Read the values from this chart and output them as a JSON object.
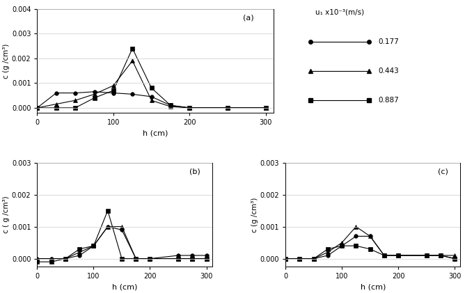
{
  "legend_title": "u₁ x10⁻³(m/s)",
  "legend_values": [
    "0.177",
    "0.443",
    "0.887"
  ],
  "markers": [
    "o",
    "^",
    "s"
  ],
  "subplot_a": {
    "label": "(a)",
    "xlabel": "h (cm)",
    "ylabel": "c (g /cm³)",
    "xlim": [
      0,
      310
    ],
    "ylim": [
      -0.0002,
      0.004
    ],
    "yticks": [
      0.0,
      0.001,
      0.002,
      0.003,
      0.004
    ],
    "xticks": [
      0,
      100,
      200,
      300
    ],
    "series": [
      {
        "x": [
          0,
          25,
          50,
          75,
          100,
          125,
          150,
          175,
          200,
          250,
          300
        ],
        "y": [
          0.0,
          0.0006,
          0.0006,
          0.00065,
          0.0006,
          0.00055,
          0.00045,
          0.0001,
          0.0,
          0.0,
          0.0
        ]
      },
      {
        "x": [
          0,
          25,
          50,
          75,
          100,
          125,
          150,
          175,
          200,
          250,
          300
        ],
        "y": [
          0.0,
          0.00015,
          0.0003,
          0.00055,
          0.0009,
          0.0019,
          0.0003,
          5e-05,
          0.0,
          0.0,
          0.0
        ]
      },
      {
        "x": [
          0,
          25,
          50,
          75,
          100,
          125,
          150,
          175,
          200,
          250,
          300
        ],
        "y": [
          0.0,
          0.0,
          0.0,
          0.0004,
          0.0007,
          0.0024,
          0.0008,
          0.0001,
          0.0,
          0.0,
          0.0
        ]
      }
    ]
  },
  "subplot_b": {
    "label": "(b)",
    "xlabel": "h (cm)",
    "ylabel": "c ( g /cm³)",
    "xlim": [
      0,
      310
    ],
    "ylim": [
      -0.00025,
      0.003
    ],
    "yticks": [
      0.0,
      0.001,
      0.002,
      0.003
    ],
    "xticks": [
      0,
      100,
      200,
      300
    ],
    "series": [
      {
        "x": [
          0,
          25,
          50,
          75,
          100,
          125,
          150,
          175,
          200,
          250,
          275,
          300
        ],
        "y": [
          0.0,
          0.0,
          0.0,
          0.0001,
          0.0004,
          0.001,
          0.0009,
          0.0,
          0.0,
          0.0001,
          0.0001,
          0.0001
        ]
      },
      {
        "x": [
          0,
          25,
          50,
          75,
          100,
          125,
          150,
          175,
          200,
          250,
          275,
          300
        ],
        "y": [
          0.0,
          0.0,
          0.0,
          0.0002,
          0.0004,
          0.001,
          0.001,
          0.0,
          0.0,
          0.0,
          0.0,
          0.0
        ]
      },
      {
        "x": [
          0,
          25,
          50,
          75,
          100,
          125,
          150,
          175,
          200,
          250,
          275,
          300
        ],
        "y": [
          -0.0001,
          -0.0001,
          0.0,
          0.0003,
          0.0004,
          0.0015,
          0.0,
          0.0,
          0.0,
          0.0,
          0.0,
          0.0
        ]
      }
    ]
  },
  "subplot_c": {
    "label": "(c)",
    "xlabel": "h (cm)",
    "ylabel": "c (g /cm³)",
    "xlim": [
      0,
      310
    ],
    "ylim": [
      -0.00025,
      0.003
    ],
    "yticks": [
      0.0,
      0.001,
      0.002,
      0.003
    ],
    "xticks": [
      0,
      100,
      200,
      300
    ],
    "series": [
      {
        "x": [
          0,
          25,
          50,
          75,
          100,
          125,
          150,
          175,
          200,
          250,
          275,
          300
        ],
        "y": [
          0.0,
          0.0,
          0.0,
          0.0001,
          0.0004,
          0.0007,
          0.0007,
          0.0001,
          0.0001,
          0.0001,
          0.0001,
          0.0
        ]
      },
      {
        "x": [
          0,
          25,
          50,
          75,
          100,
          125,
          150,
          175,
          200,
          250,
          275,
          300
        ],
        "y": [
          0.0,
          0.0,
          0.0,
          0.0002,
          0.0005,
          0.001,
          0.0007,
          0.0001,
          0.0001,
          0.0001,
          0.0001,
          0.0001
        ]
      },
      {
        "x": [
          0,
          25,
          50,
          75,
          100,
          125,
          150,
          175,
          200,
          250,
          275,
          300
        ],
        "y": [
          0.0,
          0.0,
          0.0,
          0.0003,
          0.0004,
          0.0004,
          0.0003,
          0.0001,
          0.0001,
          0.0001,
          0.0001,
          0.0
        ]
      }
    ]
  }
}
